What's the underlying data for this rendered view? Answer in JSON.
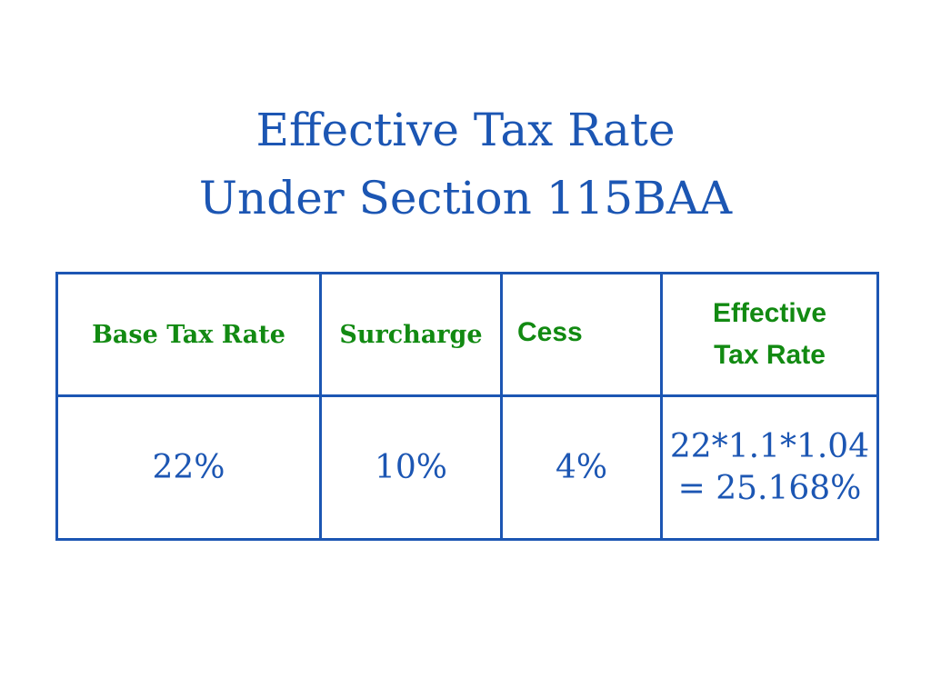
{
  "title": {
    "line1": "Effective Tax Rate",
    "line2": "Under Section 115BAA"
  },
  "table": {
    "headers": {
      "base_tax_rate": "Base Tax Rate",
      "surcharge": "Surcharge",
      "cess": "Cess",
      "effective_line1": "Effective",
      "effective_line2": "Tax Rate"
    },
    "values": {
      "base_tax_rate": "22%",
      "surcharge": "10%",
      "cess": "4%",
      "effective_line1": "22*1.1*1.04",
      "effective_line2": "= 25.168%"
    }
  },
  "colors": {
    "title": "#1c56b3",
    "header_text": "#128a12",
    "border": "#1c56b3"
  }
}
